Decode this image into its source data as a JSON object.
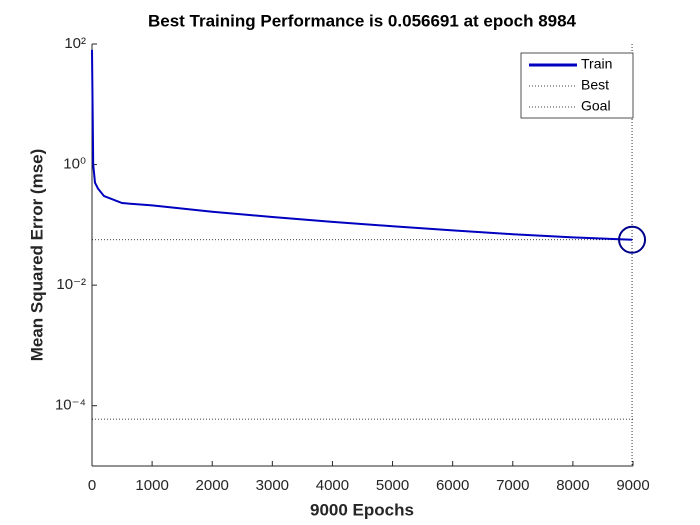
{
  "chart_data": {
    "type": "line",
    "title": "Best Training Performance is 0.056691 at epoch 8984",
    "xlabel": "9000 Epochs",
    "ylabel": "Mean Squared Error  (mse)",
    "log_y": true,
    "x": [
      0,
      20,
      50,
      100,
      200,
      500,
      1000,
      2000,
      3000,
      4000,
      5000,
      6000,
      7000,
      8000,
      8984
    ],
    "series": [
      {
        "name": "Train",
        "color": "#0000c0",
        "values": [
          80,
          1,
          0.5,
          0.4,
          0.3,
          0.23,
          0.21,
          0.165,
          0.135,
          0.112,
          0.095,
          0.081,
          0.07,
          0.062,
          0.056691
        ]
      }
    ],
    "best": {
      "name": "Best",
      "epoch": 8984,
      "value": 0.056691
    },
    "goal": {
      "name": "Goal",
      "value": 6e-05
    },
    "xlim": [
      0,
      9000
    ],
    "xticks": [
      0,
      1000,
      2000,
      3000,
      4000,
      5000,
      6000,
      7000,
      8000,
      9000
    ],
    "ylim": [
      1e-05,
      100
    ],
    "yticks": [
      {
        "value": 0.0001,
        "label": "10⁻⁴"
      },
      {
        "value": 0.01,
        "label": "10⁻²"
      },
      {
        "value": 1,
        "label": "10⁰"
      },
      {
        "value": 100,
        "label": "10²"
      }
    ],
    "legend": "northeast"
  }
}
